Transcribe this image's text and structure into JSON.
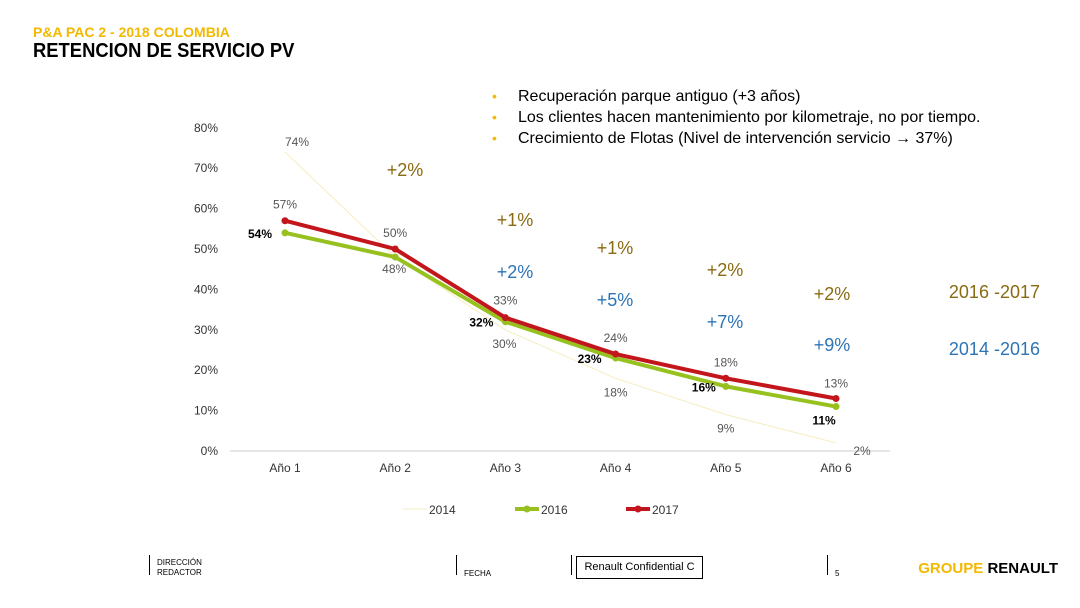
{
  "header": {
    "kicker": "P&A PAC 2 - 2018 COLOMBIA",
    "title": "RETENCION DE SERVICIO PV"
  },
  "bullets": [
    "Recuperación parque antiguo (+3 años)",
    "Los clientes hacen mantenimiento por kilometraje, no por tiempo.",
    "Crecimiento de Flotas (Nivel de intervención servicio → 37%)"
  ],
  "chart_data": {
    "type": "line",
    "categories": [
      "Año 1",
      "Año 2",
      "Año 3",
      "Año 4",
      "Año 5",
      "Año 6"
    ],
    "y_ticks": [
      "0%",
      "10%",
      "20%",
      "30%",
      "40%",
      "50%",
      "60%",
      "70%",
      "80%"
    ],
    "ylim": [
      0,
      80
    ],
    "series": [
      {
        "name": "2014",
        "color": "#f6eec0",
        "values": [
          74,
          48,
          30,
          18,
          9,
          2
        ],
        "labels": [
          "74%",
          "48%",
          "30%",
          "18%",
          "9%",
          "2%"
        ]
      },
      {
        "name": "2016",
        "color": "#96c11f",
        "values": [
          54,
          48,
          32,
          23,
          16,
          11
        ],
        "labels": [
          "54%",
          "",
          "32%",
          "23%",
          "16%",
          "11%"
        ]
      },
      {
        "name": "2017",
        "color": "#c3161c",
        "values": [
          57,
          50,
          33,
          24,
          18,
          13
        ],
        "labels": [
          "57%",
          "50%",
          "33%",
          "24%",
          "18%",
          "13%"
        ]
      }
    ],
    "annotations_2016_2017": [
      "+2%",
      "+1%",
      "+1%",
      "+2%",
      "+2%"
    ],
    "annotations_2014_2016": [
      "+2%",
      "+5%",
      "+7%",
      "+9%"
    ],
    "period_labels": {
      "a": "2016 -2017",
      "b": "2014 -2016"
    },
    "annotation_colors": {
      "a": "#8a6a12",
      "b": "#2e74b5"
    },
    "legend": "bottom",
    "grid": false
  },
  "footer": {
    "direccion": "DIRECCIÓN",
    "redactor": "REDACTOR",
    "fecha": "FECHA",
    "confidential": "Renault Confidential C",
    "page": "5",
    "brand_a": "GROUPE",
    "brand_b": "RENAULT"
  }
}
